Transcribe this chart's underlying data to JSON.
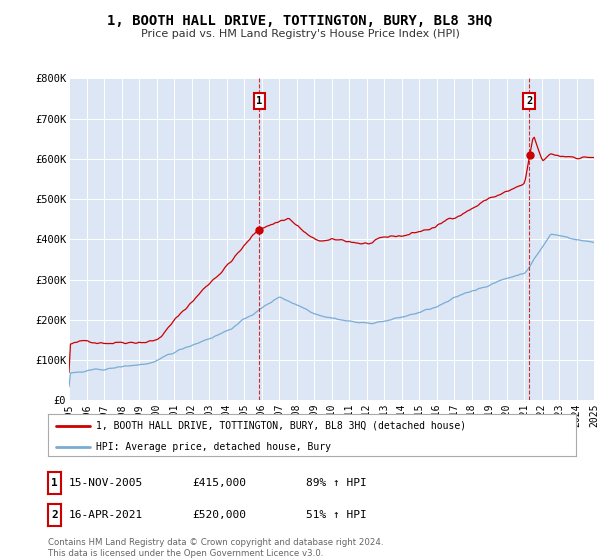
{
  "title": "1, BOOTH HALL DRIVE, TOTTINGTON, BURY, BL8 3HQ",
  "subtitle": "Price paid vs. HM Land Registry's House Price Index (HPI)",
  "plot_bg_color": "#dce6f5",
  "red_line_color": "#cc0000",
  "blue_line_color": "#7aadd4",
  "sale1_date_num": 2005.875,
  "sale1_price": 415000,
  "sale1_label": "1",
  "sale1_date_str": "15-NOV-2005",
  "sale1_hpi_pct": "89%",
  "sale2_date_num": 2021.292,
  "sale2_price": 520000,
  "sale2_label": "2",
  "sale2_date_str": "16-APR-2021",
  "sale2_hpi_pct": "51%",
  "legend_red_label": "1, BOOTH HALL DRIVE, TOTTINGTON, BURY, BL8 3HQ (detached house)",
  "legend_blue_label": "HPI: Average price, detached house, Bury",
  "footer_line1": "Contains HM Land Registry data © Crown copyright and database right 2024.",
  "footer_line2": "This data is licensed under the Open Government Licence v3.0.",
  "ylim_max": 800000,
  "xlim_min": 1995,
  "xlim_max": 2025
}
